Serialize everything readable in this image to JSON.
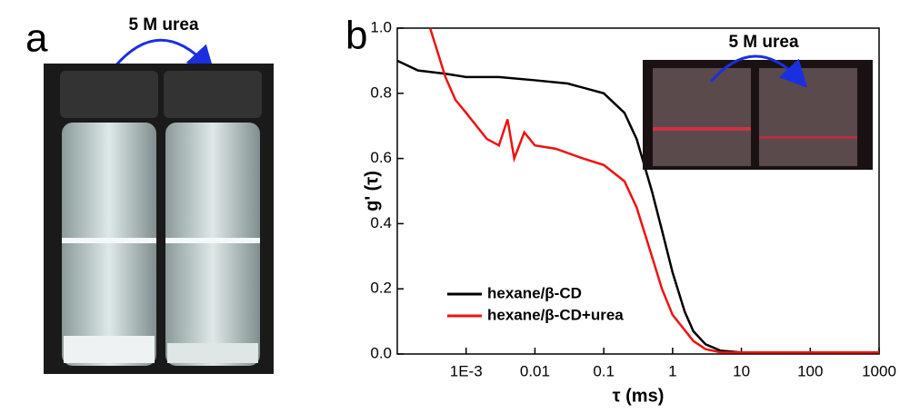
{
  "panels": {
    "a": {
      "label": "a",
      "annotation": "5 M urea"
    },
    "b": {
      "label": "b",
      "inset_annotation": "5 M urea"
    }
  },
  "chart_data": {
    "type": "line",
    "xlabel": "τ (ms)",
    "ylabel": "g' (τ)",
    "xscale": "log",
    "xlim": [
      0.0001,
      1000
    ],
    "ylim": [
      0,
      1
    ],
    "xticks": [
      {
        "value": 0.001,
        "label": "1E-3"
      },
      0.01,
      0.1,
      1,
      10,
      100,
      1000
    ],
    "yticks": [
      {
        "value": 0,
        "label": "0.0"
      },
      0.2,
      0.4,
      0.6,
      0.8,
      {
        "value": 1,
        "label": "1.0"
      }
    ],
    "legend": "lower left",
    "series": [
      {
        "name": "hexane/β-CD",
        "color": "#000000",
        "x": [
          0.0001,
          0.0002,
          0.0005,
          0.001,
          0.003,
          0.01,
          0.03,
          0.1,
          0.2,
          0.3,
          0.5,
          0.7,
          1,
          1.5,
          2,
          3,
          5,
          10,
          100,
          1000
        ],
        "values": [
          0.9,
          0.87,
          0.86,
          0.85,
          0.85,
          0.84,
          0.83,
          0.8,
          0.74,
          0.66,
          0.5,
          0.38,
          0.25,
          0.13,
          0.07,
          0.03,
          0.01,
          0.005,
          0.005,
          0.005
        ]
      },
      {
        "name": "hexane/β-CD+urea",
        "color": "#ee1111",
        "x": [
          0.0003,
          0.0005,
          0.0007,
          0.001,
          0.002,
          0.003,
          0.004,
          0.005,
          0.007,
          0.01,
          0.02,
          0.05,
          0.1,
          0.2,
          0.3,
          0.5,
          0.7,
          1,
          2,
          3,
          5,
          10,
          100,
          1000
        ],
        "values": [
          1.0,
          0.85,
          0.78,
          0.74,
          0.66,
          0.64,
          0.72,
          0.6,
          0.68,
          0.64,
          0.63,
          0.6,
          0.58,
          0.53,
          0.45,
          0.3,
          0.2,
          0.12,
          0.04,
          0.015,
          0.005,
          0.005,
          0.005,
          0.005
        ]
      }
    ]
  }
}
